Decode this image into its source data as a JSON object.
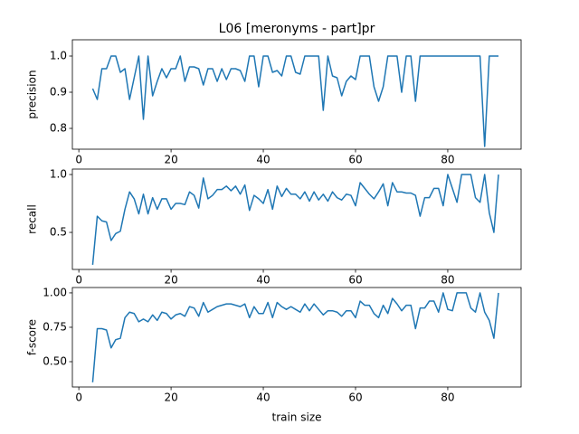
{
  "chart_data": [
    {
      "type": "line",
      "title": "L06 [meronyms - part]pr",
      "y_label": "precision",
      "color": "#1f77b4",
      "x": [
        3,
        4,
        5,
        6,
        7,
        8,
        9,
        10,
        11,
        12,
        13,
        14,
        15,
        16,
        17,
        18,
        19,
        20,
        21,
        22,
        23,
        24,
        25,
        26,
        27,
        28,
        29,
        30,
        31,
        32,
        33,
        34,
        35,
        36,
        37,
        38,
        39,
        40,
        41,
        42,
        43,
        44,
        45,
        46,
        47,
        48,
        49,
        50,
        51,
        52,
        53,
        54,
        55,
        56,
        57,
        58,
        59,
        60,
        61,
        62,
        63,
        64,
        65,
        66,
        67,
        68,
        69,
        70,
        71,
        72,
        73,
        74,
        75,
        76,
        77,
        78,
        79,
        80,
        81,
        82,
        83,
        84,
        85,
        86,
        87,
        88,
        89,
        90,
        91
      ],
      "values": [
        0.91,
        0.88,
        0.965,
        0.965,
        1.0,
        1.0,
        0.955,
        0.965,
        0.88,
        0.94,
        1.0,
        0.825,
        1.0,
        0.89,
        0.93,
        0.965,
        0.94,
        0.965,
        0.965,
        1.0,
        0.93,
        0.97,
        0.97,
        0.965,
        0.92,
        0.965,
        0.965,
        0.93,
        0.965,
        0.935,
        0.965,
        0.965,
        0.96,
        0.93,
        1.0,
        1.0,
        0.915,
        1.0,
        1.0,
        0.955,
        0.96,
        0.945,
        1.0,
        1.0,
        0.955,
        0.95,
        1.0,
        1.0,
        1.0,
        1.0,
        0.85,
        1.0,
        0.945,
        0.94,
        0.89,
        0.93,
        0.945,
        0.935,
        1.0,
        1.0,
        1.0,
        0.915,
        0.875,
        0.915,
        1.0,
        1.0,
        1.0,
        0.9,
        1.0,
        1.0,
        0.875,
        1.0,
        1,
        1,
        1,
        1,
        1,
        1,
        1,
        1,
        1,
        1,
        1,
        1,
        1,
        0.75,
        1,
        1,
        1
      ],
      "xlim": [
        -1.4,
        95.9
      ],
      "xticks": [
        0,
        20,
        40,
        60,
        80
      ],
      "ylim": [
        0.7425,
        1.045
      ],
      "yticks": [
        0.8,
        0.9,
        {
          "value": 1,
          "label": "1.0"
        }
      ]
    },
    {
      "type": "line",
      "y_label": "recall",
      "color": "#1f77b4",
      "x": [
        3,
        4,
        5,
        6,
        7,
        8,
        9,
        10,
        11,
        12,
        13,
        14,
        15,
        16,
        17,
        18,
        19,
        20,
        21,
        22,
        23,
        24,
        25,
        26,
        27,
        28,
        29,
        30,
        31,
        32,
        33,
        34,
        35,
        36,
        37,
        38,
        39,
        40,
        41,
        42,
        43,
        44,
        45,
        46,
        47,
        48,
        49,
        50,
        51,
        52,
        53,
        54,
        55,
        56,
        57,
        58,
        59,
        60,
        61,
        62,
        63,
        64,
        65,
        66,
        67,
        68,
        69,
        70,
        71,
        72,
        73,
        74,
        75,
        76,
        77,
        78,
        79,
        80,
        81,
        82,
        83,
        84,
        85,
        86,
        87,
        88,
        89,
        90,
        91
      ],
      "values": [
        0.22,
        0.64,
        0.6,
        0.59,
        0.43,
        0.49,
        0.51,
        0.7,
        0.85,
        0.79,
        0.66,
        0.83,
        0.66,
        0.8,
        0.7,
        0.79,
        0.79,
        0.7,
        0.75,
        0.75,
        0.74,
        0.85,
        0.82,
        0.71,
        0.97,
        0.79,
        0.82,
        0.87,
        0.87,
        0.9,
        0.86,
        0.9,
        0.83,
        0.91,
        0.69,
        0.82,
        0.79,
        0.75,
        0.87,
        0.7,
        0.9,
        0.81,
        0.88,
        0.83,
        0.83,
        0.79,
        0.85,
        0.77,
        0.85,
        0.78,
        0.83,
        0.77,
        0.85,
        0.8,
        0.78,
        0.83,
        0.82,
        0.73,
        0.93,
        0.88,
        0.83,
        0.79,
        0.85,
        0.92,
        0.73,
        0.93,
        0.85,
        0.85,
        0.84,
        0.84,
        0.82,
        0.64,
        0.8,
        0.8,
        0.88,
        0.88,
        0.73,
        1.0,
        0.88,
        0.76,
        1.0,
        1.0,
        1.0,
        0.8,
        0.76,
        1.0,
        0.67,
        0.5,
        1.0
      ],
      "xlim": [
        -1.4,
        95.9
      ],
      "xticks": [
        0,
        20,
        40,
        60,
        80
      ],
      "ylim": [
        0.18,
        1.047
      ],
      "yticks": [
        0.5,
        {
          "value": 1,
          "label": "1.0"
        }
      ]
    },
    {
      "type": "line",
      "y_label": "f-score",
      "x_label": "train size",
      "color": "#1f77b4",
      "x": [
        3,
        4,
        5,
        6,
        7,
        8,
        9,
        10,
        11,
        12,
        13,
        14,
        15,
        16,
        17,
        18,
        19,
        20,
        21,
        22,
        23,
        24,
        25,
        26,
        27,
        28,
        29,
        30,
        31,
        32,
        33,
        34,
        35,
        36,
        37,
        38,
        39,
        40,
        41,
        42,
        43,
        44,
        45,
        46,
        47,
        48,
        49,
        50,
        51,
        52,
        53,
        54,
        55,
        56,
        57,
        58,
        59,
        60,
        61,
        62,
        63,
        64,
        65,
        66,
        67,
        68,
        69,
        70,
        71,
        72,
        73,
        74,
        75,
        76,
        77,
        78,
        79,
        80,
        81,
        82,
        83,
        84,
        85,
        86,
        87,
        88,
        89,
        90,
        91
      ],
      "values": [
        0.35,
        0.74,
        0.74,
        0.73,
        0.6,
        0.66,
        0.67,
        0.82,
        0.86,
        0.85,
        0.79,
        0.81,
        0.79,
        0.84,
        0.8,
        0.86,
        0.85,
        0.81,
        0.84,
        0.85,
        0.83,
        0.9,
        0.89,
        0.83,
        0.93,
        0.86,
        0.88,
        0.9,
        0.91,
        0.92,
        0.92,
        0.91,
        0.9,
        0.92,
        0.82,
        0.9,
        0.85,
        0.85,
        0.93,
        0.82,
        0.93,
        0.9,
        0.88,
        0.9,
        0.88,
        0.86,
        0.92,
        0.87,
        0.92,
        0.88,
        0.84,
        0.87,
        0.87,
        0.86,
        0.83,
        0.87,
        0.87,
        0.82,
        0.94,
        0.91,
        0.91,
        0.85,
        0.82,
        0.91,
        0.85,
        0.96,
        0.92,
        0.87,
        0.91,
        0.91,
        0.74,
        0.89,
        0.89,
        0.94,
        0.94,
        0.86,
        1.0,
        0.88,
        0.87,
        1.0,
        1.0,
        1.0,
        0.89,
        0.86,
        1.0,
        0.86,
        0.8,
        0.67,
        1.0
      ],
      "xlim": [
        -1.4,
        95.9
      ],
      "xticks": [
        0,
        20,
        40,
        60,
        80
      ],
      "ylim": [
        0.316,
        1.039
      ],
      "yticks": [
        {
          "value": 0.5,
          "label": "0.50"
        },
        0.75,
        {
          "value": 1,
          "label": "1.00"
        }
      ]
    }
  ]
}
